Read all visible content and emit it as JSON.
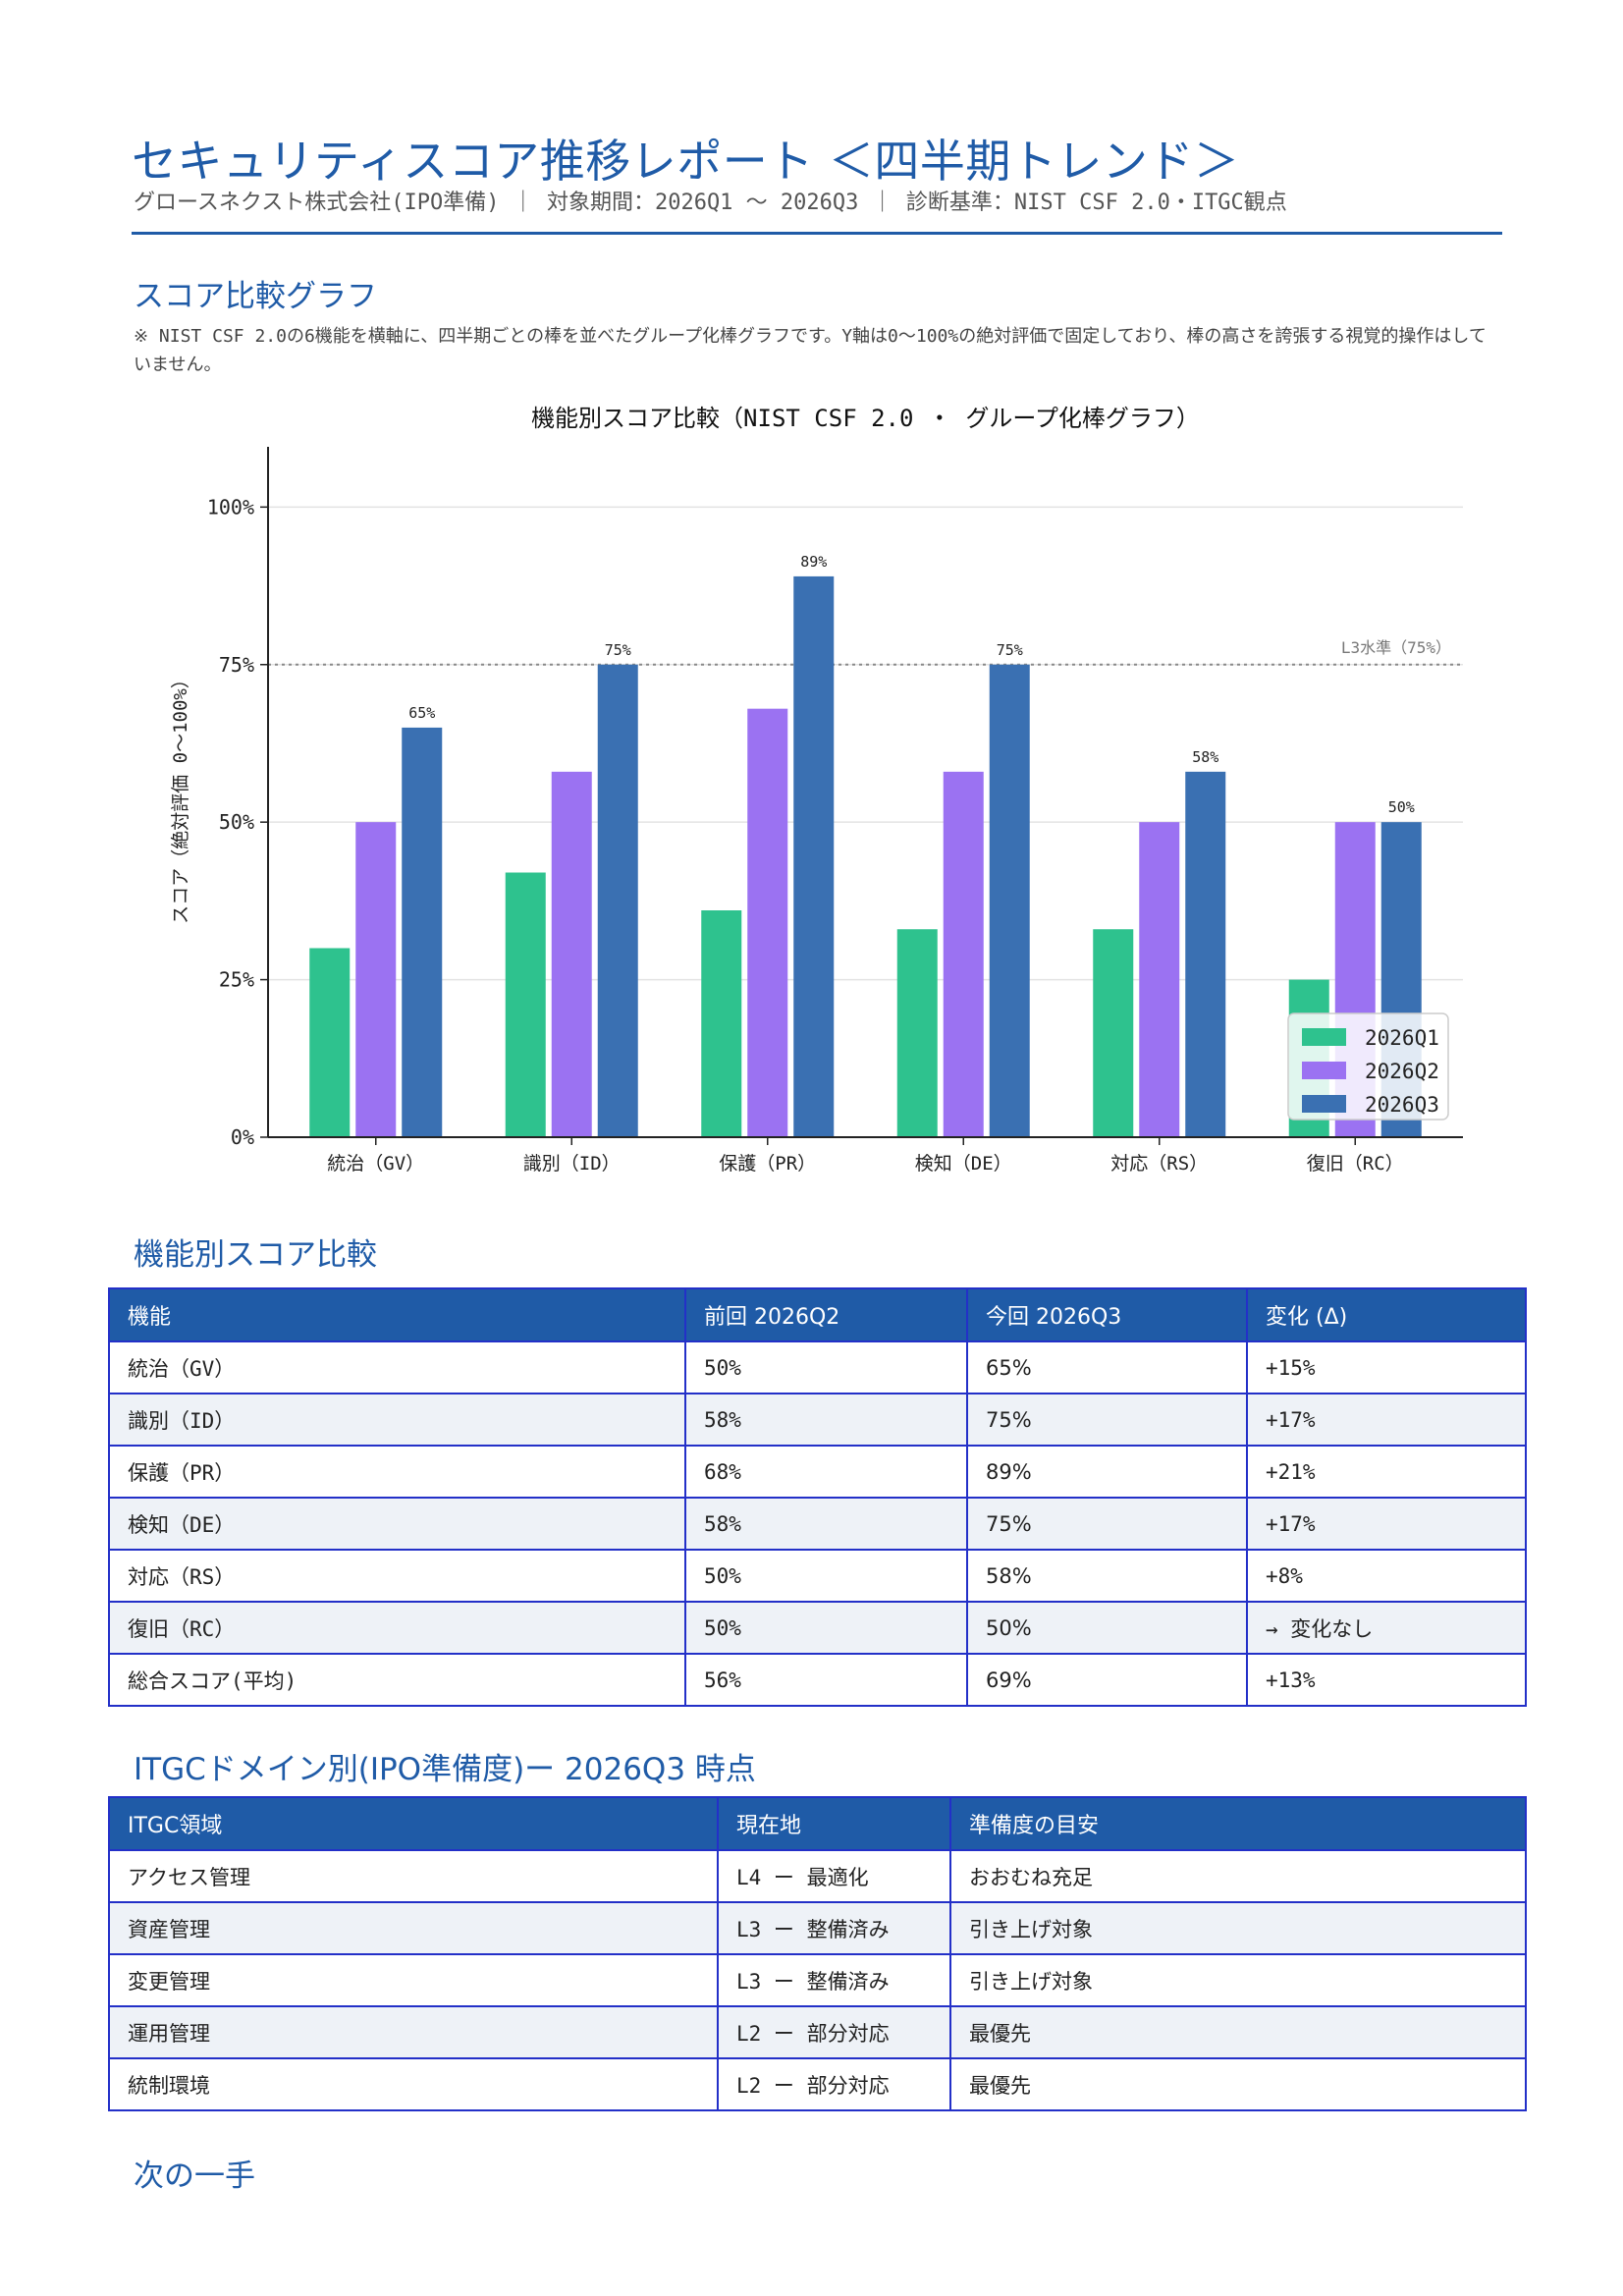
{
  "header": {
    "title": "セキュリティスコア推移レポート ＜四半期トレンド＞",
    "subtitle": "グロースネクスト株式会社(IPO準備) ｜ 対象期間：2026Q1 〜 2026Q3 ｜ 診断基準：NIST CSF 2.0・ITGC観点"
  },
  "section_graph": {
    "heading": "スコア比較グラフ",
    "note": "※ NIST CSF 2.0の6機能を横軸に、四半期ごとの棒を並べたグループ化棒グラフです。Y軸は0〜100%の絶対評価で固定しており、棒の高さを誇張する視覚的操作はしていません。"
  },
  "chart_data": {
    "type": "bar",
    "title": "機能別スコア比較（NIST CSF 2.0 ・ グループ化棒グラフ）",
    "xlabel": "",
    "ylabel": "スコア（絶対評価 0〜100%）",
    "ylim": [
      0,
      108
    ],
    "yticks": [
      "0%",
      "25%",
      "50%",
      "75%",
      "100%"
    ],
    "categories": [
      "統治（GV）",
      "識別（ID）",
      "保護（PR）",
      "検知（DE）",
      "対応（RS）",
      "復旧（RC）"
    ],
    "series": [
      {
        "name": "2026Q1",
        "color": "#2ec28e",
        "values": [
          30,
          42,
          36,
          33,
          33,
          25
        ]
      },
      {
        "name": "2026Q2",
        "color": "#9b72f2",
        "values": [
          50,
          58,
          68,
          58,
          50,
          50
        ]
      },
      {
        "name": "2026Q3",
        "color": "#3a70b2",
        "values": [
          65,
          75,
          89,
          75,
          58,
          50
        ]
      }
    ],
    "data_labels": [
      "65%",
      "75%",
      "89%",
      "75%",
      "58%",
      "50%"
    ],
    "reference_line": {
      "value": 75,
      "label": "L3水準（75%）"
    },
    "legend": "bottom-right",
    "grid": true
  },
  "section_table": {
    "heading": "機能別スコア比較",
    "columns": [
      "機能",
      "前回 2026Q2",
      "今回 2026Q3",
      "変化 (Δ)"
    ],
    "rows": [
      [
        "統治（GV）",
        "50%",
        "65%",
        "+15%"
      ],
      [
        "識別（ID）",
        "58%",
        "75%",
        "+17%"
      ],
      [
        "保護（PR）",
        "68%",
        "89%",
        "+21%"
      ],
      [
        "検知（DE）",
        "58%",
        "75%",
        "+17%"
      ],
      [
        "対応（RS）",
        "50%",
        "58%",
        "+8%"
      ],
      [
        "復旧（RC）",
        "50%",
        "50%",
        "→ 変化なし"
      ],
      [
        "総合スコア(平均)",
        "56%",
        "69%",
        "+13%"
      ]
    ]
  },
  "section_itgc": {
    "heading": "ITGCドメイン別(IPO準備度)ー 2026Q3 時点",
    "columns": [
      "ITGC領域",
      "現在地",
      "準備度の目安"
    ],
    "rows": [
      [
        "アクセス管理",
        "L4 ー 最適化",
        "おおむね充足"
      ],
      [
        "資産管理",
        "L3 ー 整備済み",
        "引き上げ対象"
      ],
      [
        "変更管理",
        "L3 ー 整備済み",
        "引き上げ対象"
      ],
      [
        "運用管理",
        "L2 ー 部分対応",
        "最優先"
      ],
      [
        "統制環境",
        "L2 ー 部分対応",
        "最優先"
      ]
    ]
  },
  "section_next": {
    "heading": "次の一手"
  }
}
